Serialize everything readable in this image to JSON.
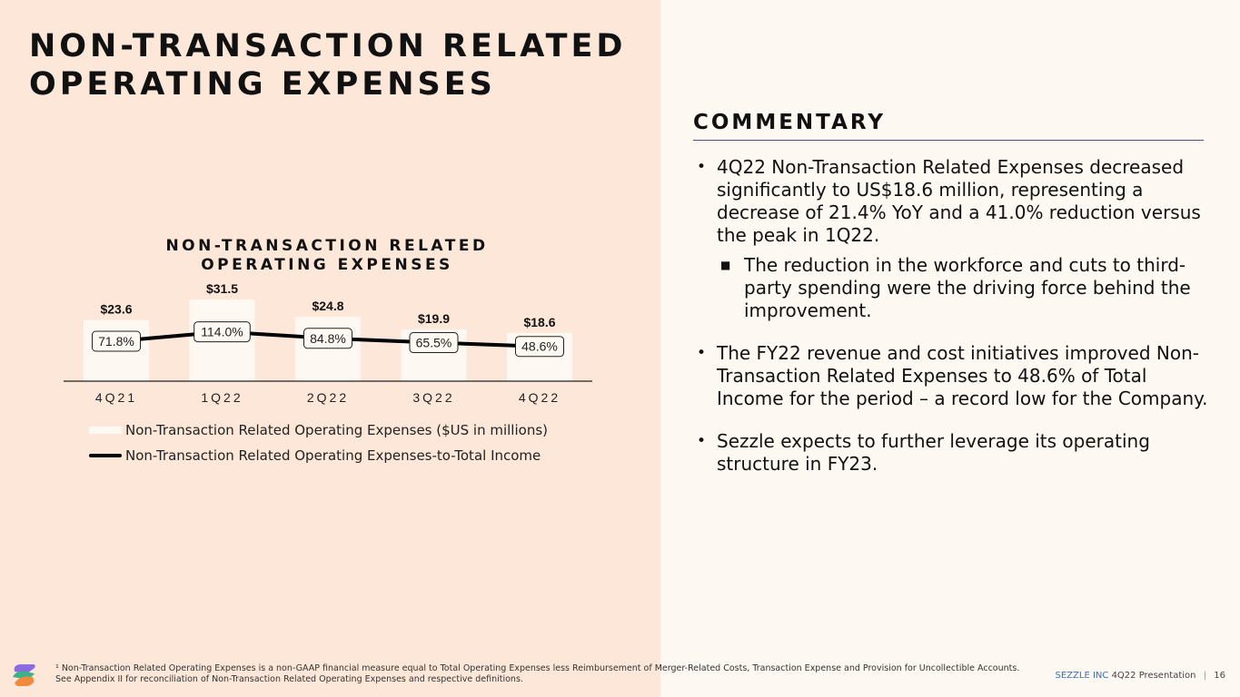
{
  "title": "NON-TRANSACTION RELATED OPERATING EXPENSES",
  "chart_data": {
    "type": "bar",
    "title": "NON-TRANSACTION RELATED OPERATING EXPENSES",
    "categories": [
      "4Q21",
      "1Q22",
      "2Q22",
      "3Q22",
      "4Q22"
    ],
    "series": [
      {
        "name": "Non-Transaction Related Operating Expenses ($US in millions)",
        "type": "bar",
        "values": [
          23.6,
          31.5,
          24.8,
          19.9,
          18.6
        ],
        "labels": [
          "$23.6",
          "$31.5",
          "$24.8",
          "$19.9",
          "$18.6"
        ],
        "color": "#fdf8f2"
      },
      {
        "name": "Non-Transaction Related Operating Expenses-to-Total Income",
        "type": "line",
        "values": [
          71.8,
          114.0,
          84.8,
          65.5,
          48.6
        ],
        "labels": [
          "71.8%",
          "114.0%",
          "84.8%",
          "65.5%",
          "48.6%"
        ],
        "color": "#000000"
      }
    ],
    "xlabel": "",
    "ylabel": "",
    "legend": "bottom"
  },
  "commentary": {
    "heading": "COMMENTARY",
    "bullet1": "4Q22 Non-Transaction Related Expenses decreased significantly to US$18.6 million, representing a decrease of 21.4% YoY and a 41.0% reduction versus the peak in 1Q22.",
    "sub_bullet1": "The reduction in the workforce and cuts to third-party spending were the driving force behind the improvement.",
    "bullet2": "The FY22 revenue and cost initiatives improved Non-Transaction Related Expenses to 48.6% of Total Income for the period – a record low for the Company.",
    "bullet3": "Sezzle expects to further leverage its operating structure in FY23."
  },
  "footnote": "¹ Non-Transaction Related Operating Expenses is a non-GAAP financial measure equal to Total Operating Expenses less Reimbursement of Merger-Related Costs, Transaction Expense and Provision for Uncollectible Accounts. See Appendix II for reconciliation of Non-Transaction Related Operating Expenses and respective definitions.",
  "footer": {
    "brand": "SEZZLE INC",
    "presentation": "4Q22 Presentation",
    "page_number": "16"
  },
  "colors": {
    "left_panel": "#fde7d8",
    "right_panel": "#fdf8f2",
    "rule": "#5a4b7c",
    "brand": "#3b6fb0"
  }
}
